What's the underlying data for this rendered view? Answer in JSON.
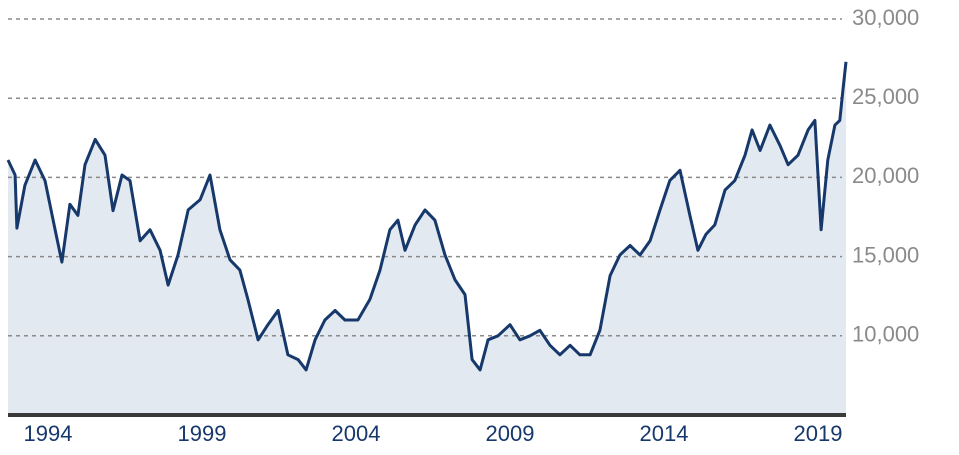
{
  "chart_data": {
    "type": "area",
    "x": [
      1992.7,
      1992.93,
      1992.99,
      1993.25,
      1993.58,
      1993.9,
      1994.23,
      1994.45,
      1994.71,
      1994.97,
      1995.2,
      1995.53,
      1995.85,
      1996.11,
      1996.4,
      1996.66,
      1996.99,
      1997.31,
      1997.64,
      1997.9,
      1998.22,
      1998.55,
      1998.94,
      1999.26,
      1999.58,
      1999.91,
      2000.23,
      2000.49,
      2000.82,
      2001.14,
      2001.47,
      2001.79,
      2002.12,
      2002.38,
      2002.67,
      2002.99,
      2003.32,
      2003.64,
      2004.06,
      2004.45,
      2004.78,
      2005.1,
      2005.36,
      2005.59,
      2005.92,
      2006.24,
      2006.56,
      2006.89,
      2007.21,
      2007.54,
      2007.77,
      2008.03,
      2008.29,
      2008.61,
      2009.0,
      2009.32,
      2009.65,
      2009.97,
      2010.3,
      2010.62,
      2010.95,
      2011.27,
      2011.6,
      2011.92,
      2012.25,
      2012.57,
      2012.9,
      2013.22,
      2013.55,
      2013.87,
      2014.19,
      2014.52,
      2014.84,
      2015.1,
      2015.36,
      2015.65,
      2015.98,
      2016.3,
      2016.63,
      2016.86,
      2017.12,
      2017.44,
      2017.77,
      2018.03,
      2018.35,
      2018.68,
      2018.9,
      2019.1,
      2019.32,
      2019.55,
      2019.71,
      2019.81,
      2019.91
    ],
    "values": [
      21100,
      20150,
      16800,
      19500,
      21100,
      19800,
      16700,
      14650,
      18300,
      17600,
      20800,
      22400,
      21400,
      17900,
      20150,
      19800,
      16000,
      16700,
      15400,
      13200,
      15100,
      17950,
      18600,
      20150,
      16700,
      14800,
      14150,
      12300,
      9740,
      10700,
      11600,
      8800,
      8500,
      7850,
      9750,
      11000,
      11600,
      11000,
      11000,
      12300,
      14150,
      16700,
      17300,
      15400,
      17000,
      17950,
      17300,
      15100,
      13550,
      12600,
      8500,
      7850,
      9750,
      10000,
      10700,
      9750,
      10000,
      10350,
      9400,
      8800,
      9400,
      8800,
      8800,
      10350,
      13800,
      15100,
      15700,
      15100,
      16000,
      17950,
      19800,
      20450,
      17600,
      15400,
      16400,
      17000,
      19200,
      19800,
      21400,
      23000,
      21700,
      23300,
      22000,
      20800,
      21400,
      23000,
      23600,
      16700,
      21100,
      23300,
      23600,
      25500,
      27300
    ],
    "color": "#17386b",
    "fill_color": "#e3e9f0",
    "xlim": [
      1992.7,
      2019.91
    ],
    "xticks": [
      1994,
      1999,
      2004,
      2009,
      2014,
      2019
    ],
    "ylim": [
      5000,
      30000
    ],
    "yticks": [
      {
        "value": 10000,
        "label": "10,000"
      },
      {
        "value": 15000,
        "label": "15,000"
      },
      {
        "value": 20000,
        "label": "20,000"
      },
      {
        "value": 25000,
        "label": "25,000"
      },
      {
        "value": 30000,
        "label": "30,000"
      }
    ],
    "grid": true
  }
}
